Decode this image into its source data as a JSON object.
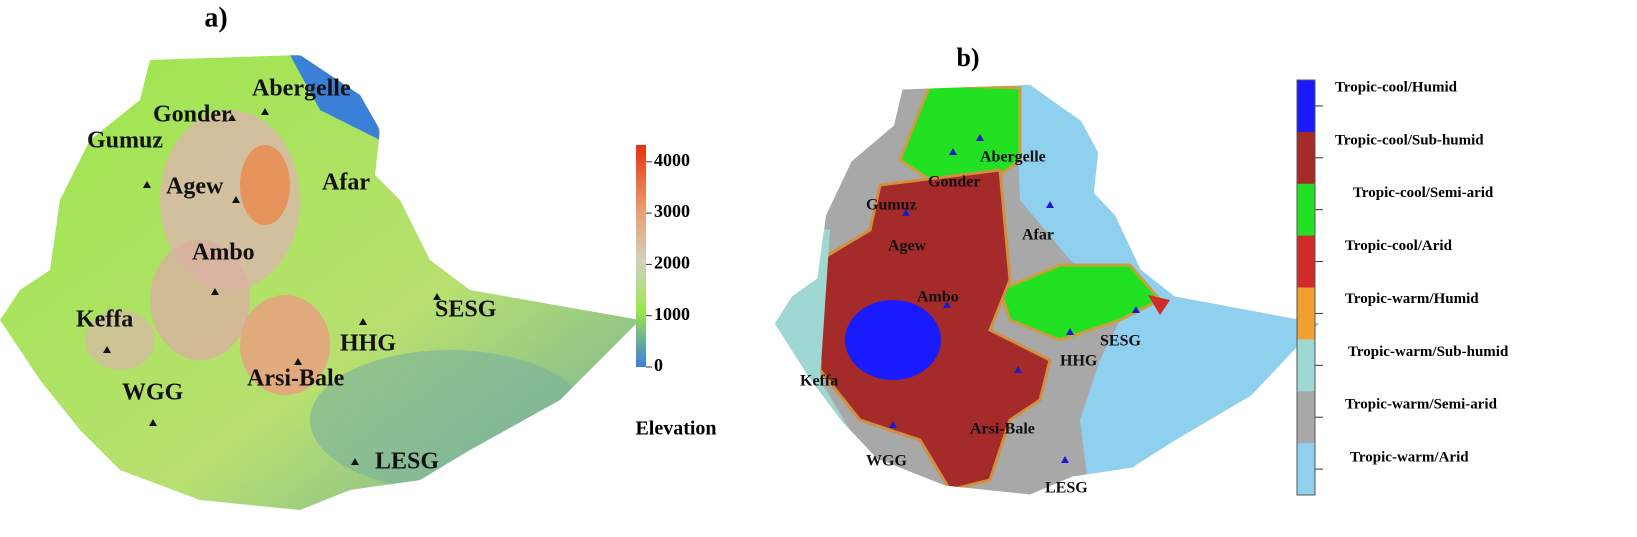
{
  "panel_a": {
    "label": "a)",
    "sites": [
      "Abergelle",
      "Gonder",
      "Gumuz",
      "Agew",
      "Afar",
      "Ambo",
      "Keffa",
      "WGG",
      "Arsi-Bale",
      "HHG",
      "SESG",
      "LESG"
    ],
    "colorbar": {
      "title": "Elevation",
      "ticks": [
        0,
        1000,
        2000,
        3000,
        4000
      ]
    }
  },
  "panel_b": {
    "label": "b)",
    "sites": [
      "Abergelle",
      "Gonder",
      "Gumuz",
      "Agew",
      "Afar",
      "Ambo",
      "Keffa",
      "WGG",
      "Arsi-Bale",
      "HHG",
      "SESG",
      "LESG"
    ],
    "legend": [
      {
        "label": "Tropic-cool/Humid",
        "color": "#1a1aff"
      },
      {
        "label": "Tropic-cool/Sub-humid",
        "color": "#a52a2a"
      },
      {
        "label": "Tropic-cool/Semi-arid",
        "color": "#22e022"
      },
      {
        "label": "Tropic-cool/Arid",
        "color": "#d02a2a"
      },
      {
        "label": "Tropic-warm/Humid",
        "color": "#f0a030"
      },
      {
        "label": "Tropic-warm/Sub-humid",
        "color": "#9fd8d2"
      },
      {
        "label": "Tropic-warm/Semi-arid",
        "color": "#a8a8a8"
      },
      {
        "label": "Tropic-warm/Arid",
        "color": "#8fd0ee"
      }
    ]
  }
}
